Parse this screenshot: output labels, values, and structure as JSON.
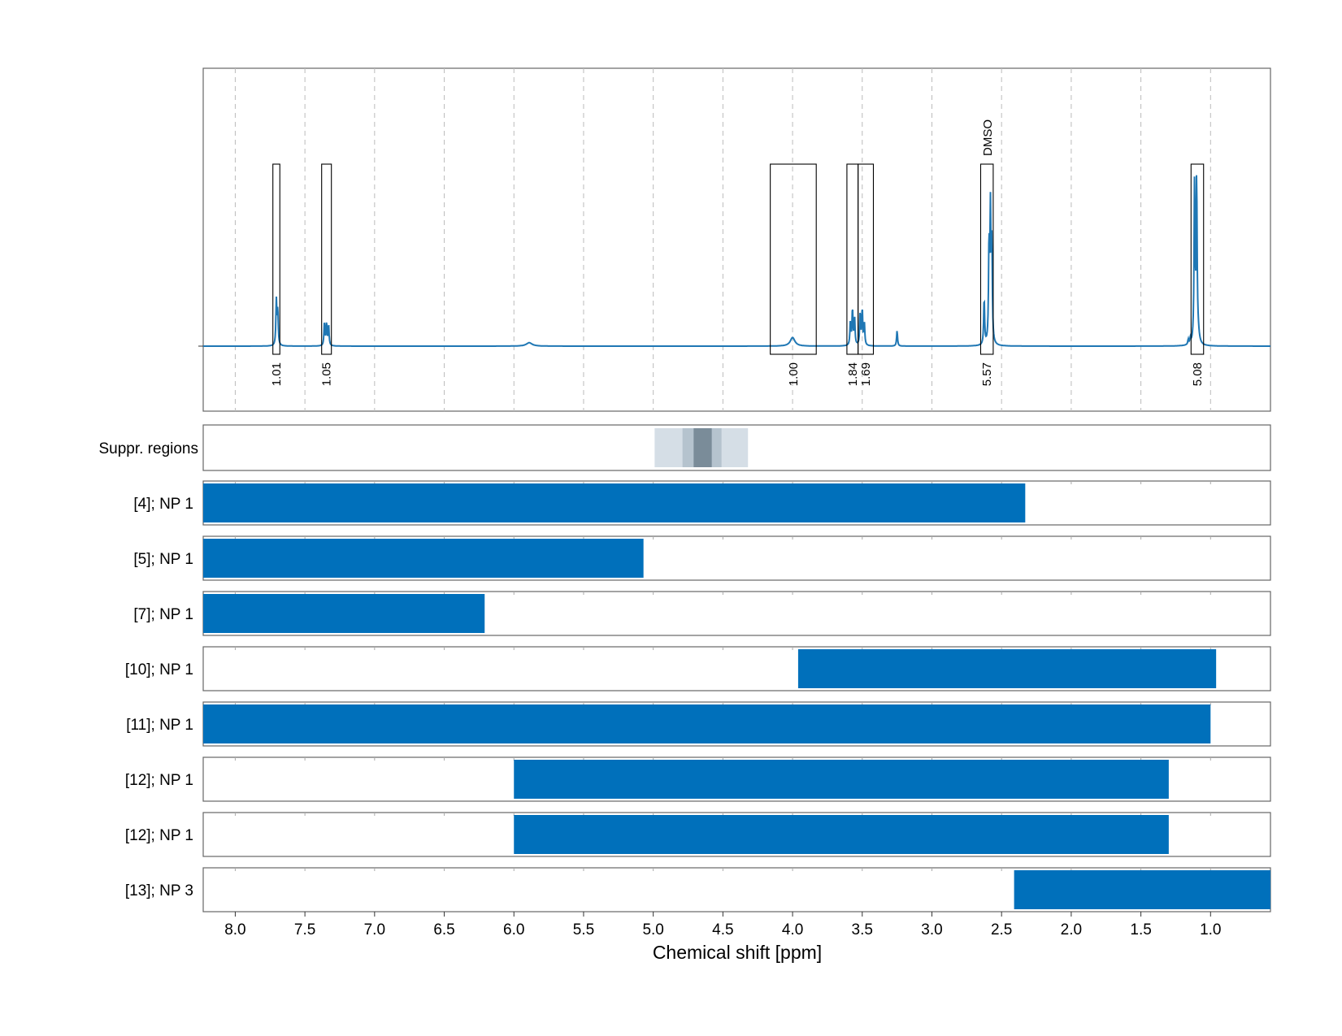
{
  "chart_data": {
    "type": "nmr-spectrum-with-range-bars",
    "xlabel": "Chemical shift [ppm]",
    "xlim": [
      8.23,
      0.57
    ],
    "xticks": [
      "8.0",
      "7.5",
      "7.0",
      "6.5",
      "6.0",
      "5.5",
      "5.0",
      "4.5",
      "4.0",
      "3.5",
      "3.0",
      "2.5",
      "2.0",
      "1.5",
      "1.0"
    ],
    "xtick_values": [
      8.0,
      7.5,
      7.0,
      6.5,
      6.0,
      5.5,
      5.0,
      4.5,
      4.0,
      3.5,
      3.0,
      2.5,
      2.0,
      1.5,
      1.0
    ],
    "grid": true,
    "spectrum": {
      "color": "#1f77b4",
      "peaks": [
        {
          "ppm": 7.705,
          "height": 0.26,
          "width": 0.004
        },
        {
          "ppm": 7.695,
          "height": 0.2,
          "width": 0.004
        },
        {
          "ppm": 7.36,
          "height": 0.13,
          "width": 0.004
        },
        {
          "ppm": 7.345,
          "height": 0.13,
          "width": 0.004
        },
        {
          "ppm": 7.33,
          "height": 0.12,
          "width": 0.004
        },
        {
          "ppm": 5.89,
          "height": 0.02,
          "width": 0.025
        },
        {
          "ppm": 4.0,
          "height": 0.05,
          "width": 0.02
        },
        {
          "ppm": 3.585,
          "height": 0.14,
          "width": 0.004
        },
        {
          "ppm": 3.57,
          "height": 0.21,
          "width": 0.004
        },
        {
          "ppm": 3.555,
          "height": 0.16,
          "width": 0.004
        },
        {
          "ppm": 3.515,
          "height": 0.19,
          "width": 0.004
        },
        {
          "ppm": 3.5,
          "height": 0.21,
          "width": 0.004
        },
        {
          "ppm": 3.485,
          "height": 0.13,
          "width": 0.004
        },
        {
          "ppm": 3.25,
          "height": 0.09,
          "width": 0.004
        },
        {
          "ppm": 2.625,
          "height": 0.27,
          "width": 0.004
        },
        {
          "ppm": 2.59,
          "height": 0.56,
          "width": 0.004
        },
        {
          "ppm": 2.58,
          "height": 0.74,
          "width": 0.004
        },
        {
          "ppm": 2.57,
          "height": 0.56,
          "width": 0.004
        },
        {
          "ppm": 1.16,
          "height": 0.03,
          "width": 0.004
        },
        {
          "ppm": 1.145,
          "height": 0.03,
          "width": 0.004
        },
        {
          "ppm": 1.115,
          "height": 0.93,
          "width": 0.004
        },
        {
          "ppm": 1.1,
          "height": 0.94,
          "width": 0.004
        },
        {
          "ppm": 1.09,
          "height": 0.06,
          "width": 0.01
        }
      ],
      "integration_boxes": [
        {
          "from": 7.73,
          "to": 7.68,
          "label": "1.01"
        },
        {
          "from": 7.38,
          "to": 7.31,
          "label": "1.05"
        },
        {
          "from": 4.16,
          "to": 3.83,
          "label": "1.00"
        },
        {
          "from": 3.61,
          "to": 3.53,
          "label": "1.84"
        },
        {
          "from": 3.53,
          "to": 3.42,
          "label": "1.69"
        },
        {
          "from": 2.65,
          "to": 2.56,
          "label": "5.57"
        },
        {
          "from": 1.14,
          "to": 1.05,
          "label": "5.08"
        }
      ],
      "annotations": [
        {
          "ppm": 2.605,
          "text": "DMSO"
        }
      ],
      "label_color": "#ff0000"
    },
    "suppression_regions": {
      "label": "Suppr. regions",
      "bands": [
        {
          "from": 4.99,
          "to": 4.32,
          "shade": "#d5dee6"
        },
        {
          "from": 4.79,
          "to": 4.51,
          "shade": "#b5c3ce"
        },
        {
          "from": 4.71,
          "to": 4.58,
          "shade": "#7a8c99"
        }
      ]
    },
    "ranges": [
      {
        "label": "[4]; NP 1",
        "from": 8.23,
        "to": 2.33
      },
      {
        "label": "[5]; NP 1",
        "from": 8.23,
        "to": 5.07
      },
      {
        "label": "[7]; NP 1",
        "from": 8.23,
        "to": 6.21
      },
      {
        "label": "[10]; NP 1",
        "from": 3.96,
        "to": 0.96
      },
      {
        "label": "[11]; NP 1",
        "from": 8.23,
        "to": 1.0
      },
      {
        "label": "[12]; NP 1",
        "from": 6.0,
        "to": 1.3
      },
      {
        "label": "[12]; NP 1",
        "from": 6.0,
        "to": 1.3
      },
      {
        "label": "[13]; NP 3",
        "from": 2.41,
        "to": 0.57
      }
    ],
    "bar_color": "#0070bb"
  }
}
